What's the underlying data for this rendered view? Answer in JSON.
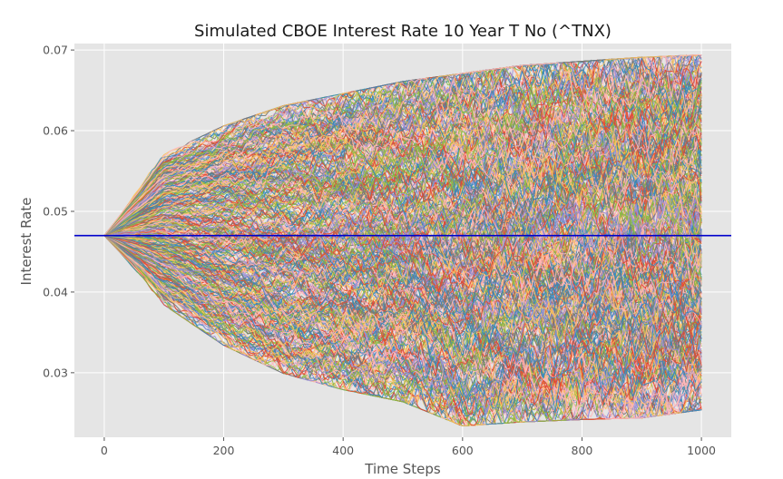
{
  "chart_data": {
    "type": "line",
    "title": "Simulated CBOE Interest Rate 10 Year T No (^TNX)",
    "xlabel": "Time Steps",
    "ylabel": "Interest Rate",
    "xlim": [
      -50,
      1050
    ],
    "ylim": [
      0.022,
      0.0708
    ],
    "x_ticks": [
      0,
      200,
      400,
      600,
      800,
      1000
    ],
    "x_tick_labels": [
      "0",
      "200",
      "400",
      "600",
      "800",
      "1000"
    ],
    "y_ticks": [
      0.03,
      0.04,
      0.05,
      0.06,
      0.07
    ],
    "y_tick_labels": [
      "0.03",
      "0.04",
      "0.05",
      "0.06",
      "0.07"
    ],
    "grid": true,
    "legend": "none",
    "background": "#e5e5e5",
    "series_count": 1000,
    "steps": 1000,
    "start_value": 0.047,
    "end_range": [
      0.026,
      0.0688
    ],
    "envelope_upper": [
      {
        "x": 0,
        "y": 0.047
      },
      {
        "x": 100,
        "y": 0.0565
      },
      {
        "x": 200,
        "y": 0.06
      },
      {
        "x": 300,
        "y": 0.0625
      },
      {
        "x": 400,
        "y": 0.064
      },
      {
        "x": 500,
        "y": 0.0655
      },
      {
        "x": 600,
        "y": 0.0665
      },
      {
        "x": 700,
        "y": 0.0675
      },
      {
        "x": 800,
        "y": 0.068
      },
      {
        "x": 900,
        "y": 0.0685
      },
      {
        "x": 1000,
        "y": 0.0688
      }
    ],
    "envelope_lower": [
      {
        "x": 0,
        "y": 0.047
      },
      {
        "x": 100,
        "y": 0.039
      },
      {
        "x": 200,
        "y": 0.034
      },
      {
        "x": 300,
        "y": 0.0305
      },
      {
        "x": 400,
        "y": 0.0285
      },
      {
        "x": 500,
        "y": 0.027
      },
      {
        "x": 600,
        "y": 0.024
      },
      {
        "x": 700,
        "y": 0.0245
      },
      {
        "x": 800,
        "y": 0.0248
      },
      {
        "x": 900,
        "y": 0.025
      },
      {
        "x": 1000,
        "y": 0.026
      }
    ],
    "reference_line": {
      "y": 0.047,
      "color": "#0000cc"
    },
    "palette": [
      "#e24a33",
      "#348abd",
      "#988ed5",
      "#777777",
      "#fbc15e",
      "#8eba42",
      "#ffb5b8"
    ]
  }
}
